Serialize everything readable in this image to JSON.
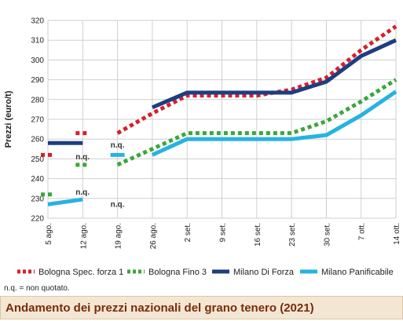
{
  "colors": {
    "bologna_spec": "#d4202c",
    "bologna_fino": "#3aa63a",
    "milano_forza": "#1f3d80",
    "milano_panif": "#27b3e2",
    "grid": "#cfcfcf",
    "caption_text": "#7a2b0a",
    "caption_bg": "#f3e7d3"
  },
  "footnote": "n.q. = non quotato.",
  "caption": "Andamento dei prezzi nazionali del grano tenero (2021)",
  "chart_data": {
    "type": "line",
    "ylabel": "Prezzi (euro/t)",
    "xlabel": "",
    "ylim": [
      220,
      320
    ],
    "yticks": [
      220,
      230,
      240,
      250,
      260,
      270,
      280,
      290,
      300,
      310,
      320
    ],
    "grid": true,
    "legend_position": "bottom",
    "categories": [
      "5 ago.",
      "12 ago.",
      "19 ago.",
      "26 ago.",
      "2 set.",
      "9 set.",
      "16 set.",
      "23 set.",
      "30 set.",
      "7 ott.",
      "14 ott."
    ],
    "series": [
      {
        "name": "Bologna Spec. forza 1",
        "color_key": "bologna_spec",
        "style": "dotted",
        "values": [
          252,
          null,
          263,
          273,
          282,
          282,
          282,
          285,
          291,
          305,
          317
        ],
        "stubs": [
          {
            "x": "5 ago.",
            "y": 252
          },
          {
            "x": "12 ago.",
            "y": 263
          }
        ]
      },
      {
        "name": "Bologna Fino 3",
        "color_key": "bologna_fino",
        "style": "dotted",
        "values": [
          232,
          null,
          247,
          255,
          263,
          263,
          263,
          263,
          269,
          279,
          290
        ],
        "stubs": [
          {
            "x": "5 ago.",
            "y": 232
          },
          {
            "x": "12 ago.",
            "y": 247
          }
        ]
      },
      {
        "name": "Milano Di Forza",
        "color_key": "milano_forza",
        "style": "solid",
        "values": [
          258,
          258,
          null,
          276,
          283.5,
          283.5,
          283.5,
          283.5,
          289,
          302,
          310
        ],
        "stubs": []
      },
      {
        "name": "Milano Panificabile",
        "color_key": "milano_panif",
        "style": "solid",
        "values": [
          227,
          229.5,
          null,
          252,
          260,
          260,
          260,
          260,
          262,
          272,
          284
        ],
        "stubs": [
          {
            "x": "19 ago.",
            "y": 252
          }
        ]
      }
    ],
    "annotations": [
      {
        "text": "n.q.",
        "x": "12 ago.",
        "y": 251
      },
      {
        "text": "n.q.",
        "x": "19 ago.",
        "y": 257
      },
      {
        "text": "n.q.",
        "x": "12 ago.",
        "y": 233
      },
      {
        "text": "n.q.",
        "x": "19 ago.",
        "y": 227
      }
    ]
  }
}
